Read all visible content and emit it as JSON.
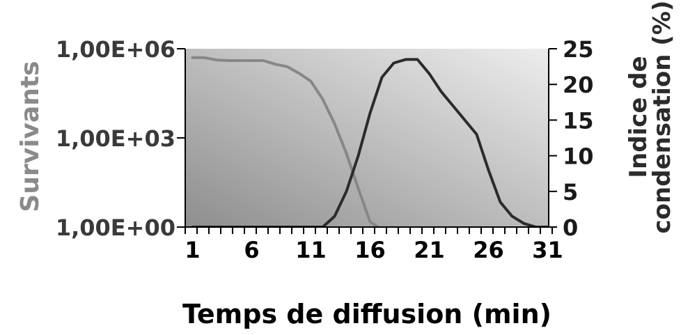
{
  "chart_data": {
    "type": "line",
    "xlabel": "Temps de diffusion (min)",
    "ylabel_left": "Survivants",
    "ylabel_right_line1": "Indice de",
    "ylabel_right_line2": "condensation (%)",
    "x_range": [
      1,
      32
    ],
    "x_ticks": [
      1,
      6,
      11,
      16,
      21,
      26,
      31
    ],
    "x_tick_labels": [
      "1",
      "6",
      "11",
      "16",
      "21",
      "26",
      "31"
    ],
    "y_left_scale": "log",
    "y_left_range": [
      1,
      1000000
    ],
    "y_left_ticks": [
      1,
      1000,
      1000000
    ],
    "y_left_tick_labels": [
      "1,00E+00",
      "1,00E+03",
      "1,00E+06"
    ],
    "y_right_range": [
      0,
      25
    ],
    "y_right_ticks": [
      0,
      5,
      10,
      15,
      20,
      25
    ],
    "y_right_tick_labels": [
      "0",
      "5",
      "10",
      "15",
      "20",
      "25"
    ],
    "colors": {
      "survivants": "#878787",
      "condensation": "#2b2b2b",
      "left_axis_title": "#8a8a8a",
      "right_axis_title": "#2b2b2b",
      "plot_bg_dark": "#8e8e8e",
      "plot_bg_light": "#ededed"
    },
    "series": [
      {
        "axis": "left",
        "x": [
          1,
          2,
          3,
          4,
          5,
          6,
          7,
          8,
          9,
          10,
          11,
          12,
          13,
          14,
          15,
          16,
          17
        ],
        "values": [
          500000,
          500000,
          420000,
          400000,
          400000,
          400000,
          400000,
          300000,
          250000,
          150000,
          80000,
          20000,
          3000,
          300,
          20,
          1.5,
          0.8
        ]
      },
      {
        "axis": "right",
        "x": [
          1,
          2,
          3,
          4,
          5,
          6,
          7,
          8,
          9,
          10,
          11,
          12,
          13,
          14,
          15,
          16,
          17,
          18,
          19,
          20,
          21,
          22,
          23,
          24,
          25,
          26,
          27,
          28,
          29,
          30,
          31,
          32
        ],
        "values": [
          0,
          0,
          0,
          0,
          0,
          0,
          0,
          0,
          0,
          0,
          0,
          0,
          1.5,
          5,
          10,
          16,
          21,
          23,
          23.5,
          23.5,
          21.5,
          19,
          17,
          15,
          13,
          8,
          3.5,
          1.5,
          0.5,
          0,
          0,
          0
        ]
      }
    ]
  }
}
